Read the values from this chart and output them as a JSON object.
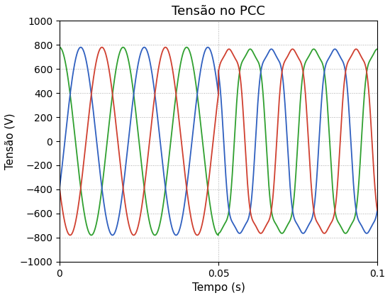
{
  "title": "Tensão no PCC",
  "xlabel": "Tempo (s)",
  "ylabel": "Tensão (V)",
  "xlim": [
    0,
    0.1
  ],
  "ylim": [
    -1000,
    1000
  ],
  "yticks": [
    -1000,
    -800,
    -600,
    -400,
    -200,
    0,
    200,
    400,
    600,
    800,
    1000
  ],
  "xticks": [
    0,
    0.05,
    0.1
  ],
  "freq": 50,
  "amplitude_before": 780,
  "amplitude_after": 850,
  "fault_time": 0.05,
  "phase_green": 1.5708,
  "phase_blue": -0.5236,
  "phase_red": -2.618,
  "color_blue": "#3060c0",
  "color_red": "#d04030",
  "color_green": "#30a030",
  "linewidth": 1.3,
  "background_color": "#ffffff",
  "grid_color": "#aaaaaa",
  "harmonics_after": [
    1.0,
    0.15,
    0.05
  ],
  "harmonic_orders": [
    1,
    3,
    5
  ]
}
